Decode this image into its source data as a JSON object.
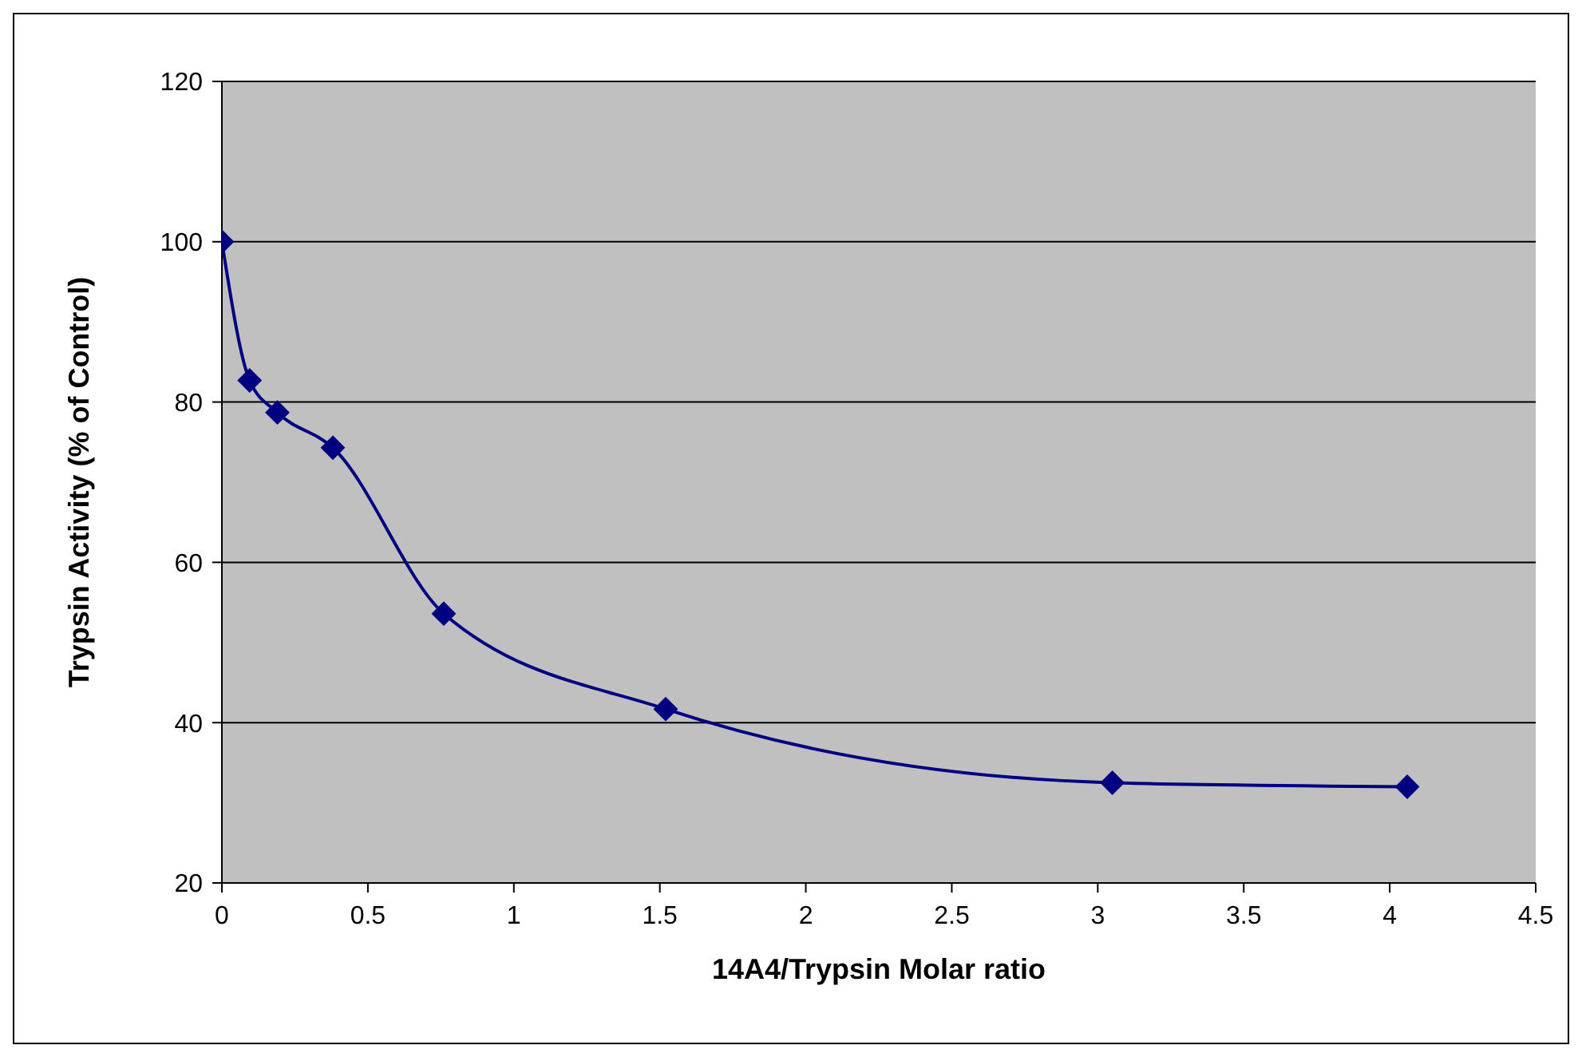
{
  "chart_data": {
    "type": "line",
    "xlabel": "14A4/Trypsin Molar ratio",
    "ylabel": "Trypsin Activity (% of Control)",
    "x": [
      0,
      0.095,
      0.19,
      0.38,
      0.76,
      1.52,
      3.05,
      4.06
    ],
    "series": [
      {
        "color": "#000080",
        "values": [
          100,
          82.7,
          78.7,
          74.3,
          53.6,
          41.7,
          32.5,
          32.0
        ]
      }
    ],
    "xlim": [
      0,
      4.5
    ],
    "xticks": [
      0,
      0.5,
      1,
      1.5,
      2,
      2.5,
      3,
      3.5,
      4,
      4.5
    ],
    "ylim": [
      20,
      120
    ],
    "yticks": [
      20,
      40,
      60,
      80,
      100,
      120
    ],
    "grid": "y",
    "marker": "diamond",
    "line_style": "solid",
    "legend": false
  }
}
